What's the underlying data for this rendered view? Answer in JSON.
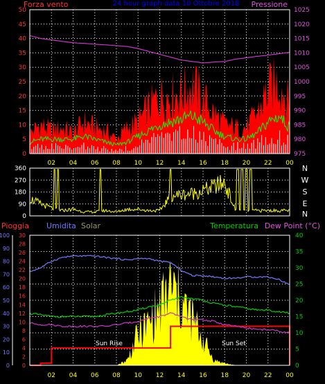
{
  "colors": {
    "background": "#000000",
    "frame": "#ffffff",
    "grid": "#ffffff",
    "wind_bg": "#ff0000",
    "wind_mid": "#00ff00",
    "wind_front": "#ffffff",
    "pressure": "#cc33cc",
    "direction": "#ffff00",
    "humidity": "#7777ff",
    "temperature": "#00cc00",
    "dew_point": "#cc33cc",
    "rain": "#ff0000",
    "solar": "#ffff00",
    "hour_labels": "#ffff00",
    "left_axis_red": "#ff3333",
    "left_axis_blue": "#7777ff",
    "right_axis_pink": "#dd55dd",
    "right_axis_green": "#00cc00",
    "title": "#0000ff"
  },
  "chart_data": [
    {
      "type": "line",
      "title": "24 hour graph data 10 Ottobre 2018",
      "left_label": "Forza vento",
      "right_label": "Pressione",
      "x_ticks": [
        "02",
        "04",
        "06",
        "08",
        "10",
        "12",
        "14",
        "16",
        "18",
        "20",
        "22",
        "00"
      ],
      "left_axis": {
        "ylim": [
          0,
          50
        ],
        "ticks": [
          "0",
          "5",
          "10",
          "15",
          "20",
          "25",
          "30",
          "35",
          "40",
          "45",
          "50"
        ]
      },
      "right_axis": {
        "ylim": [
          975,
          1025
        ],
        "ticks": [
          "975",
          "980",
          "985",
          "990",
          "995",
          "1000",
          "1005",
          "1010",
          "1015",
          "1020",
          "1025"
        ]
      },
      "x_hours": [
        0,
        1,
        2,
        3,
        4,
        5,
        6,
        7,
        8,
        9,
        10,
        11,
        12,
        13,
        14,
        15,
        16,
        17,
        18,
        19,
        20,
        21,
        22,
        23,
        24
      ],
      "series": [
        {
          "name": "wind_max",
          "values": [
            7,
            10,
            8,
            9,
            7,
            11,
            9,
            8,
            5,
            9,
            11,
            16,
            20,
            20,
            21,
            24,
            19,
            14,
            10,
            9,
            9,
            14,
            22,
            25,
            17
          ]
        },
        {
          "name": "wind_avg",
          "values": [
            4,
            5,
            5,
            5,
            5,
            6,
            5,
            4,
            3,
            4,
            6,
            8,
            10,
            11,
            12,
            13,
            11,
            8,
            6,
            5,
            5,
            7,
            11,
            13,
            9
          ]
        },
        {
          "name": "wind_min",
          "values": [
            2,
            3,
            3,
            2,
            3,
            3,
            2,
            2,
            1,
            2,
            3,
            5,
            6,
            6,
            7,
            7,
            6,
            5,
            3,
            3,
            3,
            4,
            6,
            7,
            5
          ]
        },
        {
          "name": "Pressione",
          "values": [
            1016,
            1015,
            1014.5,
            1014,
            1013.5,
            1013.3,
            1013,
            1012.8,
            1012.5,
            1012.2,
            1011.5,
            1010.5,
            1009.5,
            1008.5,
            1007.5,
            1007,
            1006.5,
            1006.8,
            1007,
            1007.8,
            1008.3,
            1008.8,
            1009.2,
            1009.7,
            1010.2
          ]
        }
      ]
    },
    {
      "type": "line",
      "title": "",
      "right_label_letters": [
        "N",
        "W",
        "S",
        "E",
        "N"
      ],
      "x_ticks": [
        "02",
        "04",
        "06",
        "08",
        "10",
        "12",
        "14",
        "16",
        "18",
        "20",
        "22",
        "00"
      ],
      "left_axis": {
        "ylim": [
          0,
          360
        ],
        "ticks": [
          "0",
          "90",
          "180",
          "270",
          "360"
        ]
      },
      "x_hours": [
        0,
        1,
        2,
        3,
        4,
        5,
        6,
        7,
        8,
        9,
        10,
        11,
        12,
        13,
        14,
        15,
        16,
        17,
        18,
        19,
        20,
        21,
        22,
        23,
        24
      ],
      "series": [
        {
          "name": "direction",
          "values": [
            130,
            90,
            60,
            40,
            50,
            30,
            30,
            40,
            30,
            50,
            50,
            40,
            40,
            150,
            160,
            170,
            190,
            220,
            250,
            40,
            40,
            40,
            40,
            40,
            40
          ]
        }
      ]
    },
    {
      "type": "line",
      "title": "",
      "header_labels": [
        "Pioggia",
        "Umidita",
        "Solar",
        "Temperatura",
        "Dew Point (°C)"
      ],
      "annotations": [
        "Sun Rise",
        "Sun Set"
      ],
      "x_ticks": [
        "02",
        "04",
        "06",
        "08",
        "10",
        "12",
        "14",
        "16",
        "18",
        "20",
        "22",
        "00"
      ],
      "axis_blue": {
        "ylim": [
          0,
          100
        ],
        "ticks": [
          "0",
          "10",
          "20",
          "30",
          "40",
          "50",
          "60",
          "70",
          "80",
          "90",
          "100"
        ]
      },
      "axis_red": {
        "ylim": [
          0,
          30
        ],
        "ticks": [
          "0",
          "2",
          "4",
          "6",
          "8",
          "10",
          "12",
          "14",
          "16",
          "18",
          "20",
          "22",
          "24",
          "26",
          "28",
          "30"
        ]
      },
      "axis_right": {
        "ylim": [
          0,
          40
        ],
        "ticks": [
          "0",
          "5",
          "10",
          "15",
          "20",
          "25",
          "30",
          "35",
          "40"
        ]
      },
      "x_hours": [
        0,
        1,
        2,
        3,
        4,
        5,
        6,
        7,
        8,
        9,
        10,
        11,
        12,
        13,
        14,
        15,
        16,
        17,
        18,
        19,
        20,
        21,
        22,
        23,
        24
      ],
      "series": [
        {
          "name": "Umidita",
          "values": [
            72,
            75,
            80,
            83,
            84,
            84,
            84,
            83,
            82,
            81,
            82,
            82,
            80,
            79,
            73,
            69,
            69,
            68,
            67,
            67,
            68,
            68,
            68,
            66,
            62
          ]
        },
        {
          "name": "Temperatura",
          "values": [
            16,
            15.5,
            15,
            15,
            15,
            15,
            15,
            15.5,
            16,
            16.5,
            17,
            18,
            18.5,
            20,
            21,
            20.5,
            20,
            19,
            18.5,
            18,
            17.5,
            17,
            17,
            16.5,
            16
          ]
        },
        {
          "name": "Dew Point",
          "values": [
            13,
            12.5,
            12.5,
            12,
            12,
            12,
            12,
            12,
            12.5,
            13,
            13.5,
            14.5,
            15,
            16,
            15,
            14,
            14,
            13.5,
            12.5,
            12,
            11.5,
            11,
            11,
            10.5,
            10
          ]
        },
        {
          "name": "Pioggia",
          "values": [
            0,
            0.5,
            4,
            4,
            4,
            4,
            4,
            4,
            4,
            4,
            4,
            4,
            4,
            9,
            9,
            9,
            9,
            9,
            9,
            9,
            9,
            9,
            9,
            9,
            0
          ]
        },
        {
          "name": "Solar",
          "values": [
            0,
            0,
            0,
            0,
            0,
            0,
            0,
            0,
            0,
            5,
            30,
            40,
            55,
            75,
            60,
            45,
            25,
            5,
            2,
            0,
            0,
            0,
            0,
            0,
            0
          ]
        }
      ]
    }
  ]
}
